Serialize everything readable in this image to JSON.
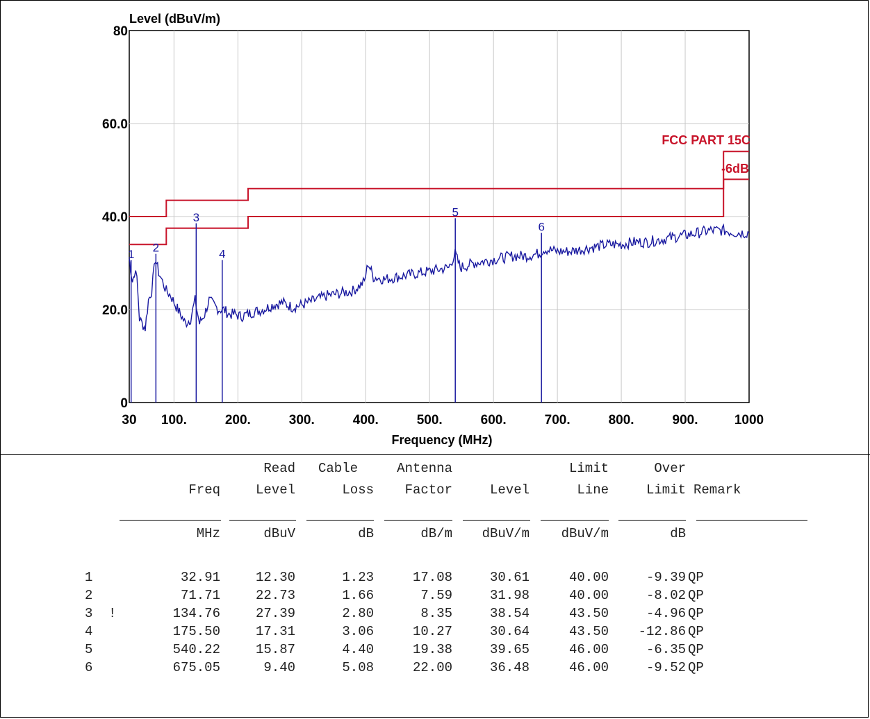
{
  "chart_data": {
    "type": "line",
    "ylabel": "Level (dBuV/m)",
    "xlabel": "Frequency (MHz)",
    "xlim": [
      30,
      1000
    ],
    "ylim": [
      0,
      80
    ],
    "y_ticks": [
      {
        "value": 0,
        "label": "0"
      },
      {
        "value": 20,
        "label": "20.0"
      },
      {
        "value": 40,
        "label": "40.0"
      },
      {
        "value": 60,
        "label": "60.0"
      },
      {
        "value": 80,
        "label": "80"
      }
    ],
    "x_ticks": [
      {
        "value": 30,
        "label": "30"
      },
      {
        "value": 100,
        "label": "100."
      },
      {
        "value": 200,
        "label": "200."
      },
      {
        "value": 300,
        "label": "300."
      },
      {
        "value": 400,
        "label": "400."
      },
      {
        "value": 500,
        "label": "500."
      },
      {
        "value": 600,
        "label": "600."
      },
      {
        "value": 700,
        "label": "700."
      },
      {
        "value": 800,
        "label": "800."
      },
      {
        "value": 900,
        "label": "900."
      },
      {
        "value": 1000,
        "label": "1000"
      }
    ],
    "grid": true,
    "limit_label": "FCC PART 15C",
    "margin_label": "-6dB",
    "limit_line": {
      "x": [
        30,
        88,
        88,
        216,
        216,
        960,
        960,
        1000
      ],
      "y": [
        40,
        40,
        43.5,
        43.5,
        46,
        46,
        54,
        54
      ]
    },
    "margin_line": {
      "x": [
        30,
        88,
        88,
        216,
        216,
        960,
        960,
        1000
      ],
      "y": [
        34,
        34,
        37.5,
        37.5,
        40,
        40,
        48,
        48
      ]
    },
    "spectrum": {
      "x": [
        30,
        32,
        35,
        38,
        42,
        46,
        50,
        55,
        60,
        65,
        71,
        76,
        82,
        88,
        95,
        102,
        110,
        118,
        126,
        133,
        140,
        148,
        155,
        162,
        170,
        178,
        186,
        195,
        205,
        215,
        225,
        240,
        255,
        270,
        285,
        300,
        320,
        340,
        360,
        380,
        398,
        404,
        412,
        430,
        450,
        470,
        490,
        510,
        530,
        540,
        548,
        570,
        590,
        610,
        630,
        650,
        670,
        680,
        700,
        720,
        740,
        760,
        780,
        800,
        820,
        840,
        860,
        880,
        900,
        920,
        940,
        960,
        980,
        1000
      ],
      "y": [
        31,
        29,
        26,
        28,
        27,
        18,
        17,
        16,
        22,
        24,
        31,
        28,
        26,
        24,
        23,
        21,
        19,
        17,
        18,
        22,
        17,
        19,
        22,
        21,
        20,
        20,
        19,
        19,
        18.5,
        19,
        19.5,
        20,
        21,
        21.5,
        20.5,
        21,
        22,
        23,
        23.5,
        24,
        26,
        30,
        27,
        26.5,
        27,
        27.5,
        28,
        28.5,
        29,
        32,
        29,
        30,
        30.5,
        31,
        31.5,
        31.5,
        32,
        33,
        32.5,
        32.5,
        33,
        33.5,
        34,
        34,
        34.5,
        34.5,
        35,
        35.5,
        36,
        36.5,
        37,
        37,
        36.5,
        36.5
      ]
    },
    "markers": [
      {
        "label": "1",
        "x": 32.91,
        "y": 30.61
      },
      {
        "label": "2",
        "x": 71.71,
        "y": 31.98
      },
      {
        "label": "3",
        "x": 134.76,
        "y": 38.54
      },
      {
        "label": "4",
        "x": 175.5,
        "y": 30.64
      },
      {
        "label": "5",
        "x": 540.22,
        "y": 39.65
      },
      {
        "label": "6",
        "x": 675.05,
        "y": 36.48
      }
    ]
  },
  "table": {
    "header_row1": [
      "",
      "Read",
      "Cable",
      "Antenna",
      "",
      "Limit",
      "Over",
      ""
    ],
    "header_row2": [
      "Freq",
      "Level",
      "Loss",
      "Factor",
      "Level",
      "Line",
      "Limit",
      "Remark"
    ],
    "units": [
      "MHz",
      "dBuV",
      "dB",
      "dB/m",
      "dBuV/m",
      "dBuV/m",
      "dB",
      ""
    ],
    "rows": [
      {
        "no": "1",
        "flag": "",
        "freq": "32.91",
        "read": "12.30",
        "loss": "1.23",
        "factor": "17.08",
        "level": "30.61",
        "limit": "40.00",
        "over": "-9.39",
        "remark": "QP"
      },
      {
        "no": "2",
        "flag": "",
        "freq": "71.71",
        "read": "22.73",
        "loss": "1.66",
        "factor": "7.59",
        "level": "31.98",
        "limit": "40.00",
        "over": "-8.02",
        "remark": "QP"
      },
      {
        "no": "3",
        "flag": "!",
        "freq": "134.76",
        "read": "27.39",
        "loss": "2.80",
        "factor": "8.35",
        "level": "38.54",
        "limit": "43.50",
        "over": "-4.96",
        "remark": "QP"
      },
      {
        "no": "4",
        "flag": "",
        "freq": "175.50",
        "read": "17.31",
        "loss": "3.06",
        "factor": "10.27",
        "level": "30.64",
        "limit": "43.50",
        "over": "-12.86",
        "remark": "QP"
      },
      {
        "no": "5",
        "flag": "",
        "freq": "540.22",
        "read": "15.87",
        "loss": "4.40",
        "factor": "19.38",
        "level": "39.65",
        "limit": "46.00",
        "over": "-6.35",
        "remark": "QP"
      },
      {
        "no": "6",
        "flag": "",
        "freq": "675.05",
        "read": "9.40",
        "loss": "5.08",
        "factor": "22.00",
        "level": "36.48",
        "limit": "46.00",
        "over": "-9.52",
        "remark": "QP"
      }
    ]
  },
  "colors": {
    "limit": "#c8142a",
    "spectrum": "#1a1aa0",
    "grid": "#c8c8c8"
  }
}
